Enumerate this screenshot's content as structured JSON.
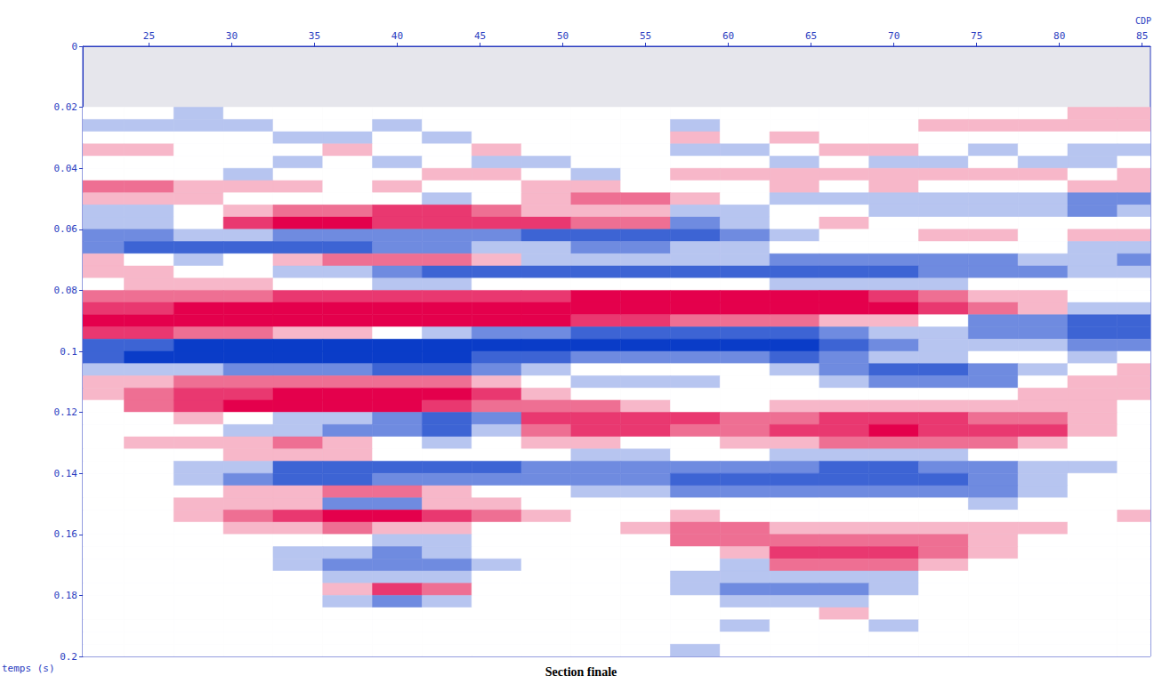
{
  "chart_data": {
    "type": "heatmap",
    "title": "Section finale",
    "xlabel": "CDP",
    "ylabel": "temps (s)",
    "x": [
      22,
      25,
      28,
      31,
      34,
      37,
      40,
      43,
      46,
      49,
      52,
      55,
      58,
      61,
      64,
      67,
      70,
      73,
      76,
      79,
      82,
      85
    ],
    "y": [
      0.022,
      0.026,
      0.03,
      0.034,
      0.038,
      0.042,
      0.046,
      0.05,
      0.054,
      0.058,
      0.062,
      0.066,
      0.07,
      0.074,
      0.078,
      0.082,
      0.086,
      0.09,
      0.094,
      0.098,
      0.102,
      0.106,
      0.11,
      0.114,
      0.118,
      0.122,
      0.126,
      0.13,
      0.134,
      0.138,
      0.142,
      0.146,
      0.15,
      0.154,
      0.158,
      0.162,
      0.166,
      0.17,
      0.174,
      0.178,
      0.182,
      0.186,
      0.19,
      0.194,
      0.198
    ],
    "cells": [
      [
        0,
        0,
        -1,
        0,
        0,
        0,
        0,
        0,
        0,
        0,
        0,
        0,
        0,
        0,
        0,
        0,
        0,
        0,
        0,
        0,
        1,
        1
      ],
      [
        -1,
        -1,
        -1,
        -1,
        0,
        0,
        -1,
        0,
        0,
        0,
        0,
        0,
        -1,
        0,
        0,
        0,
        0,
        1,
        1,
        1,
        1,
        1
      ],
      [
        0,
        0,
        0,
        0,
        -1,
        -1,
        0,
        -1,
        0,
        0,
        0,
        0,
        1,
        0,
        1,
        0,
        0,
        0,
        0,
        0,
        0,
        0
      ],
      [
        1,
        1,
        0,
        0,
        0,
        1,
        0,
        0,
        1,
        0,
        0,
        0,
        -1,
        -1,
        0,
        1,
        1,
        0,
        -1,
        0,
        -1,
        -1
      ],
      [
        0,
        0,
        0,
        0,
        -1,
        0,
        -1,
        0,
        -1,
        -1,
        0,
        0,
        0,
        0,
        -1,
        0,
        -1,
        -1,
        0,
        -1,
        -1,
        0
      ],
      [
        0,
        0,
        0,
        -1,
        0,
        0,
        0,
        1,
        1,
        0,
        -1,
        0,
        1,
        1,
        1,
        1,
        1,
        1,
        1,
        1,
        0,
        1
      ],
      [
        2,
        2,
        1,
        1,
        1,
        0,
        1,
        0,
        0,
        1,
        1,
        0,
        0,
        0,
        1,
        0,
        1,
        0,
        0,
        0,
        1,
        1
      ],
      [
        1,
        1,
        1,
        0,
        0,
        0,
        0,
        -1,
        0,
        1,
        2,
        2,
        1,
        0,
        -1,
        -1,
        -1,
        -1,
        -1,
        -1,
        -2,
        -2
      ],
      [
        -1,
        -1,
        0,
        1,
        2,
        2,
        3,
        3,
        2,
        1,
        1,
        1,
        -1,
        -1,
        0,
        0,
        -1,
        -1,
        -1,
        -1,
        -2,
        -1
      ],
      [
        -1,
        -1,
        0,
        3,
        4,
        4,
        3,
        3,
        3,
        3,
        2,
        2,
        -2,
        -1,
        0,
        1,
        0,
        0,
        0,
        0,
        0,
        0
      ],
      [
        -2,
        -2,
        -1,
        -1,
        -2,
        -2,
        -2,
        -2,
        -2,
        -3,
        -3,
        -3,
        -3,
        -2,
        -1,
        0,
        0,
        1,
        1,
        0,
        1,
        1
      ],
      [
        -2,
        -3,
        -3,
        -3,
        -3,
        -3,
        -2,
        -2,
        -1,
        -1,
        -2,
        -2,
        -1,
        -1,
        0,
        0,
        0,
        0,
        0,
        0,
        -1,
        -1
      ],
      [
        1,
        0,
        -1,
        0,
        1,
        2,
        2,
        2,
        1,
        -1,
        -1,
        -1,
        -1,
        -1,
        -2,
        -2,
        -2,
        -2,
        -2,
        -1,
        -1,
        -2
      ],
      [
        1,
        1,
        0,
        0,
        -1,
        -1,
        -2,
        -3,
        -3,
        -3,
        -3,
        -3,
        -3,
        -3,
        -3,
        -3,
        -3,
        -2,
        -2,
        -2,
        -1,
        -1
      ],
      [
        0,
        1,
        1,
        1,
        0,
        0,
        -1,
        -1,
        0,
        0,
        0,
        0,
        0,
        0,
        -1,
        -1,
        -1,
        -1,
        0,
        0,
        0,
        0
      ],
      [
        2,
        2,
        2,
        2,
        3,
        3,
        3,
        3,
        3,
        3,
        4,
        4,
        4,
        4,
        4,
        4,
        3,
        2,
        1,
        1,
        0,
        0
      ],
      [
        3,
        3,
        4,
        4,
        4,
        4,
        4,
        4,
        4,
        4,
        4,
        4,
        4,
        4,
        4,
        4,
        4,
        3,
        2,
        1,
        -1,
        -1
      ],
      [
        4,
        4,
        4,
        4,
        4,
        4,
        4,
        4,
        4,
        4,
        3,
        3,
        2,
        2,
        2,
        1,
        1,
        0,
        -2,
        -2,
        -3,
        -3
      ],
      [
        3,
        3,
        2,
        2,
        1,
        1,
        0,
        -1,
        -2,
        -2,
        -3,
        -3,
        -3,
        -3,
        -3,
        -2,
        -1,
        -1,
        -2,
        -2,
        -3,
        -3
      ],
      [
        -3,
        -3,
        -4,
        -4,
        -4,
        -4,
        -4,
        -4,
        -4,
        -4,
        -4,
        -4,
        -4,
        -4,
        -4,
        -3,
        -2,
        -1,
        -1,
        -1,
        -2,
        -2
      ],
      [
        -3,
        -4,
        -4,
        -4,
        -4,
        -4,
        -4,
        -4,
        -3,
        -3,
        -2,
        -2,
        -2,
        -2,
        -3,
        -2,
        -1,
        -1,
        0,
        0,
        -1,
        0
      ],
      [
        -1,
        -1,
        -1,
        -2,
        -2,
        -2,
        -3,
        -3,
        -2,
        -1,
        0,
        0,
        0,
        0,
        -1,
        -2,
        -3,
        -3,
        -2,
        -1,
        0,
        1
      ],
      [
        1,
        1,
        2,
        2,
        2,
        2,
        2,
        2,
        1,
        0,
        -1,
        -1,
        -1,
        0,
        0,
        -1,
        -2,
        -2,
        -2,
        0,
        1,
        1
      ],
      [
        1,
        2,
        3,
        3,
        4,
        4,
        4,
        4,
        3,
        1,
        0,
        0,
        0,
        0,
        0,
        0,
        0,
        0,
        0,
        1,
        1,
        1
      ],
      [
        0,
        2,
        3,
        4,
        4,
        4,
        4,
        3,
        2,
        2,
        2,
        1,
        0,
        0,
        1,
        1,
        1,
        1,
        1,
        1,
        1,
        0
      ],
      [
        0,
        0,
        1,
        0,
        -1,
        -1,
        -2,
        -3,
        -2,
        3,
        3,
        3,
        3,
        2,
        2,
        3,
        3,
        3,
        2,
        2,
        1,
        0
      ],
      [
        0,
        0,
        0,
        -1,
        -1,
        -2,
        -2,
        -3,
        -1,
        2,
        3,
        3,
        2,
        2,
        3,
        3,
        4,
        3,
        3,
        3,
        1,
        0
      ],
      [
        0,
        1,
        1,
        1,
        2,
        1,
        0,
        -1,
        0,
        1,
        1,
        0,
        0,
        1,
        1,
        2,
        2,
        2,
        2,
        1,
        0,
        0
      ],
      [
        0,
        0,
        0,
        1,
        1,
        1,
        0,
        0,
        0,
        0,
        -1,
        -1,
        0,
        0,
        -1,
        -1,
        -1,
        -1,
        0,
        0,
        0,
        0
      ],
      [
        0,
        0,
        -1,
        -1,
        -3,
        -3,
        -3,
        -3,
        -3,
        -2,
        -2,
        -2,
        -2,
        -2,
        -2,
        -3,
        -3,
        -2,
        -2,
        -1,
        -1,
        0
      ],
      [
        0,
        0,
        -1,
        -2,
        -3,
        -3,
        -2,
        -2,
        -2,
        -2,
        -2,
        -2,
        -3,
        -3,
        -3,
        -3,
        -3,
        -3,
        -2,
        -1,
        0,
        0
      ],
      [
        0,
        0,
        0,
        1,
        1,
        2,
        2,
        1,
        0,
        0,
        -1,
        -1,
        -2,
        -2,
        -2,
        -2,
        -2,
        -2,
        -2,
        -1,
        0,
        0
      ],
      [
        0,
        0,
        1,
        1,
        1,
        -2,
        -2,
        1,
        1,
        0,
        0,
        0,
        0,
        0,
        0,
        0,
        0,
        0,
        -1,
        0,
        0,
        0
      ],
      [
        0,
        0,
        1,
        2,
        3,
        4,
        4,
        3,
        2,
        1,
        0,
        0,
        1,
        0,
        0,
        0,
        0,
        0,
        0,
        0,
        0,
        1
      ],
      [
        0,
        0,
        0,
        1,
        1,
        2,
        1,
        1,
        0,
        0,
        0,
        1,
        2,
        2,
        1,
        1,
        1,
        1,
        1,
        1,
        0,
        0
      ],
      [
        0,
        0,
        0,
        0,
        0,
        0,
        -1,
        -1,
        0,
        0,
        0,
        0,
        2,
        2,
        2,
        2,
        2,
        2,
        1,
        0,
        0,
        0
      ],
      [
        0,
        0,
        0,
        0,
        -1,
        -1,
        -2,
        -1,
        0,
        0,
        0,
        0,
        0,
        1,
        3,
        3,
        3,
        2,
        1,
        0,
        0,
        0
      ],
      [
        0,
        0,
        0,
        0,
        -1,
        -2,
        -2,
        -2,
        -1,
        0,
        0,
        0,
        0,
        -1,
        2,
        2,
        2,
        1,
        0,
        0,
        0,
        0
      ],
      [
        0,
        0,
        0,
        0,
        0,
        -1,
        -1,
        -1,
        0,
        0,
        0,
        0,
        -1,
        -1,
        -1,
        -1,
        -1,
        0,
        0,
        0,
        0,
        0
      ],
      [
        0,
        0,
        0,
        0,
        0,
        1,
        3,
        2,
        0,
        0,
        0,
        0,
        -1,
        -2,
        -2,
        -2,
        -1,
        0,
        0,
        0,
        0,
        0
      ],
      [
        0,
        0,
        0,
        0,
        0,
        -1,
        -2,
        -1,
        0,
        0,
        0,
        0,
        0,
        -1,
        -1,
        -1,
        0,
        0,
        0,
        0,
        0,
        0
      ],
      [
        0,
        0,
        0,
        0,
        0,
        0,
        0,
        0,
        0,
        0,
        0,
        0,
        0,
        0,
        0,
        1,
        0,
        0,
        0,
        0,
        0,
        0
      ],
      [
        0,
        0,
        0,
        0,
        0,
        0,
        0,
        0,
        0,
        0,
        0,
        0,
        0,
        -1,
        0,
        0,
        -1,
        0,
        0,
        0,
        0,
        0
      ],
      [
        0,
        0,
        0,
        0,
        0,
        0,
        0,
        0,
        0,
        0,
        0,
        0,
        0,
        0,
        0,
        0,
        0,
        0,
        0,
        0,
        0,
        0
      ],
      [
        0,
        0,
        0,
        0,
        0,
        0,
        0,
        0,
        0,
        0,
        0,
        0,
        -1,
        0,
        0,
        0,
        0,
        0,
        0,
        0,
        0,
        0
      ]
    ],
    "color_range": [
      -4,
      4
    ],
    "xlim": [
      21,
      85.5
    ],
    "xticks": [
      25,
      30,
      35,
      40,
      45,
      50,
      55,
      60,
      65,
      70,
      75,
      80,
      85
    ],
    "ylim": [
      0,
      0.2
    ],
    "yticks": [
      0,
      0.02,
      0.04,
      0.06,
      0.08,
      0.1,
      0.12,
      0.14,
      0.16,
      0.18,
      0.2
    ],
    "grid": false
  }
}
